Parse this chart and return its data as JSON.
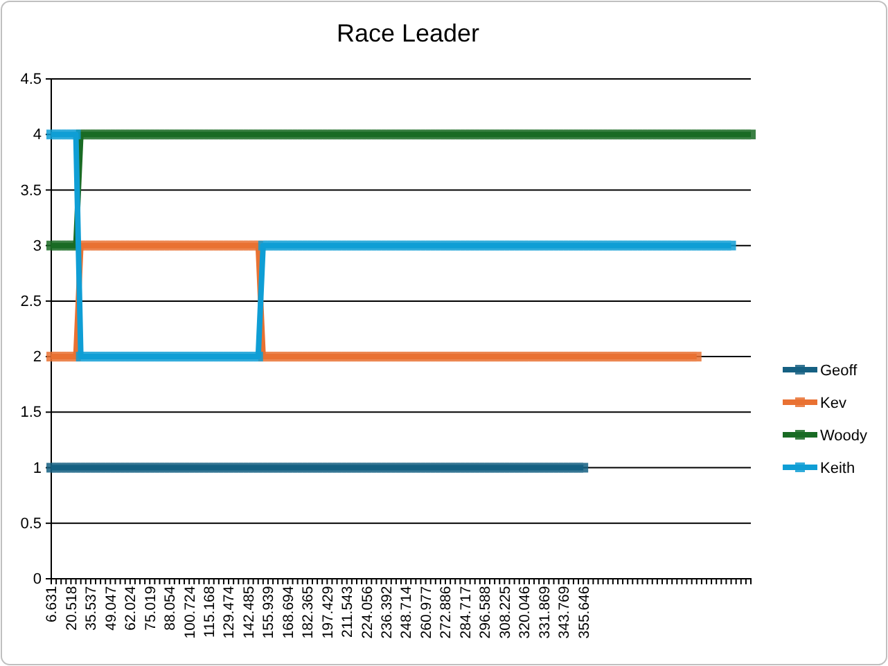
{
  "chart_data": {
    "type": "line",
    "title": "Race Leader",
    "categories": [
      "6.631",
      null,
      null,
      null,
      "20.518",
      null,
      null,
      null,
      "35.537",
      null,
      null,
      null,
      "49.047",
      null,
      null,
      null,
      "62.024",
      null,
      null,
      null,
      "75.019",
      null,
      null,
      null,
      "88.054",
      null,
      null,
      null,
      "100.724",
      null,
      null,
      null,
      "115.168",
      null,
      null,
      null,
      "129.474",
      null,
      null,
      null,
      "142.485",
      null,
      null,
      null,
      "155.939",
      null,
      null,
      null,
      "168.694",
      null,
      null,
      null,
      "182.365",
      null,
      null,
      null,
      "197.429",
      null,
      null,
      null,
      "211.543",
      null,
      null,
      null,
      "224.056",
      null,
      null,
      null,
      "236.392",
      null,
      null,
      null,
      "248.714",
      null,
      null,
      null,
      "260.977",
      null,
      null,
      null,
      "272.886",
      null,
      null,
      null,
      "284.717",
      null,
      null,
      null,
      "296.588",
      null,
      null,
      null,
      "308.225",
      null,
      null,
      null,
      "320.046",
      null,
      null,
      null,
      "331.869",
      null,
      null,
      null,
      "343.769",
      null,
      null,
      null,
      "355.646",
      null,
      null,
      null,
      null,
      null,
      null,
      null,
      null,
      null,
      null,
      null,
      null,
      null,
      null,
      null,
      null,
      null,
      null,
      null,
      null,
      null,
      null,
      null,
      null,
      null,
      null,
      null,
      null,
      null,
      null,
      null,
      null,
      null,
      null
    ],
    "series": [
      {
        "name": "Geoff",
        "color": "#156082",
        "values": [
          1,
          1,
          1,
          1,
          1,
          1,
          1,
          1,
          1,
          1,
          1,
          1,
          1,
          1,
          1,
          1,
          1,
          1,
          1,
          1,
          1,
          1,
          1,
          1,
          1,
          1,
          1,
          1,
          1,
          1,
          1,
          1,
          1,
          1,
          1,
          1,
          1,
          1,
          1,
          1,
          1,
          1,
          1,
          1,
          1,
          1,
          1,
          1,
          1,
          1,
          1,
          1,
          1,
          1,
          1,
          1,
          1,
          1,
          1,
          1,
          1,
          1,
          1,
          1,
          1,
          1,
          1,
          1,
          1,
          1,
          1,
          1,
          1,
          1,
          1,
          1,
          1,
          1,
          1,
          1,
          1,
          1,
          1,
          1,
          1,
          1,
          1,
          1,
          1,
          1,
          1,
          1,
          1,
          1,
          1,
          1,
          1,
          1,
          1,
          1,
          1,
          1,
          1,
          1,
          1,
          1,
          1,
          1,
          1,
          null,
          null,
          null,
          null,
          null,
          null,
          null,
          null,
          null,
          null,
          null,
          null,
          null,
          null,
          null,
          null,
          null,
          null,
          null,
          null,
          null,
          null,
          null,
          null,
          null,
          null,
          null,
          null,
          null,
          null,
          null,
          null,
          null,
          null
        ]
      },
      {
        "name": "Kev",
        "color": "#e97132",
        "values": [
          2,
          2,
          2,
          2,
          2,
          2,
          3,
          3,
          3,
          3,
          3,
          3,
          3,
          3,
          3,
          3,
          3,
          3,
          3,
          3,
          3,
          3,
          3,
          3,
          3,
          3,
          3,
          3,
          3,
          3,
          3,
          3,
          3,
          3,
          3,
          3,
          3,
          3,
          3,
          3,
          3,
          3,
          3,
          2,
          2,
          2,
          2,
          2,
          2,
          2,
          2,
          2,
          2,
          2,
          2,
          2,
          2,
          2,
          2,
          2,
          2,
          2,
          2,
          2,
          2,
          2,
          2,
          2,
          2,
          2,
          2,
          2,
          2,
          2,
          2,
          2,
          2,
          2,
          2,
          2,
          2,
          2,
          2,
          2,
          2,
          2,
          2,
          2,
          2,
          2,
          2,
          2,
          2,
          2,
          2,
          2,
          2,
          2,
          2,
          2,
          2,
          2,
          2,
          2,
          2,
          2,
          2,
          2,
          2,
          2,
          2,
          2,
          2,
          2,
          2,
          2,
          2,
          2,
          2,
          2,
          2,
          2,
          2,
          2,
          2,
          2,
          2,
          2,
          2,
          2,
          2,
          2,
          null,
          null,
          null,
          null,
          null,
          null,
          null,
          null,
          null,
          null,
          null
        ]
      },
      {
        "name": "Woody",
        "color": "#196b24",
        "values": [
          3,
          3,
          3,
          3,
          3,
          3,
          4,
          4,
          4,
          4,
          4,
          4,
          4,
          4,
          4,
          4,
          4,
          4,
          4,
          4,
          4,
          4,
          4,
          4,
          4,
          4,
          4,
          4,
          4,
          4,
          4,
          4,
          4,
          4,
          4,
          4,
          4,
          4,
          4,
          4,
          4,
          4,
          4,
          4,
          4,
          4,
          4,
          4,
          4,
          4,
          4,
          4,
          4,
          4,
          4,
          4,
          4,
          4,
          4,
          4,
          4,
          4,
          4,
          4,
          4,
          4,
          4,
          4,
          4,
          4,
          4,
          4,
          4,
          4,
          4,
          4,
          4,
          4,
          4,
          4,
          4,
          4,
          4,
          4,
          4,
          4,
          4,
          4,
          4,
          4,
          4,
          4,
          4,
          4,
          4,
          4,
          4,
          4,
          4,
          4,
          4,
          4,
          4,
          4,
          4,
          4,
          4,
          4,
          4,
          4,
          4,
          4,
          4,
          4,
          4,
          4,
          4,
          4,
          4,
          4,
          4,
          4,
          4,
          4,
          4,
          4,
          4,
          4,
          4,
          4,
          4,
          4,
          4,
          4,
          4,
          4,
          4,
          4,
          4,
          4,
          4,
          4,
          4
        ]
      },
      {
        "name": "Keith",
        "color": "#0f9ed5",
        "values": [
          4,
          4,
          4,
          4,
          4,
          4,
          2,
          2,
          2,
          2,
          2,
          2,
          2,
          2,
          2,
          2,
          2,
          2,
          2,
          2,
          2,
          2,
          2,
          2,
          2,
          2,
          2,
          2,
          2,
          2,
          2,
          2,
          2,
          2,
          2,
          2,
          2,
          2,
          2,
          2,
          2,
          2,
          2,
          3,
          3,
          3,
          3,
          3,
          3,
          3,
          3,
          3,
          3,
          3,
          3,
          3,
          3,
          3,
          3,
          3,
          3,
          3,
          3,
          3,
          3,
          3,
          3,
          3,
          3,
          3,
          3,
          3,
          3,
          3,
          3,
          3,
          3,
          3,
          3,
          3,
          3,
          3,
          3,
          3,
          3,
          3,
          3,
          3,
          3,
          3,
          3,
          3,
          3,
          3,
          3,
          3,
          3,
          3,
          3,
          3,
          3,
          3,
          3,
          3,
          3,
          3,
          3,
          3,
          3,
          3,
          3,
          3,
          3,
          3,
          3,
          3,
          3,
          3,
          3,
          3,
          3,
          3,
          3,
          3,
          3,
          3,
          3,
          3,
          3,
          3,
          3,
          3,
          3,
          3,
          3,
          3,
          3,
          3,
          3,
          null,
          null,
          null,
          null
        ]
      }
    ],
    "ylim": [
      0,
      4.5
    ],
    "yticks": [
      0,
      0.5,
      1,
      1.5,
      2,
      2.5,
      3,
      3.5,
      4,
      4.5
    ],
    "grid": "y",
    "legend": "right",
    "marker": "square",
    "line_style": "solid"
  }
}
